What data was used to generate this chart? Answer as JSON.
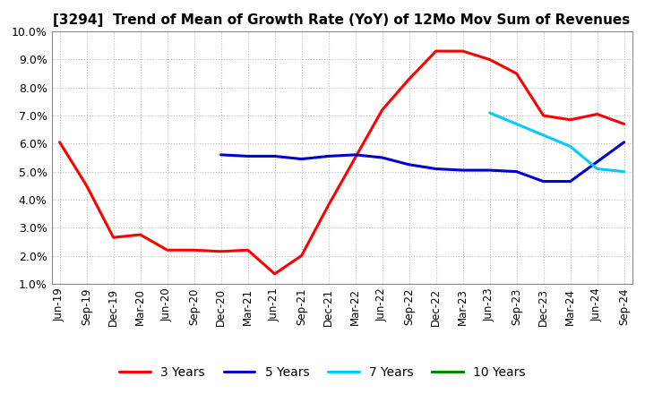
{
  "title": "[3294]  Trend of Mean of Growth Rate (YoY) of 12Mo Mov Sum of Revenues",
  "title_fontsize": 11,
  "ylim": [
    1.0,
    10.0
  ],
  "yticks": [
    1.0,
    2.0,
    3.0,
    4.0,
    5.0,
    6.0,
    7.0,
    8.0,
    9.0,
    10.0
  ],
  "background_color": "#ffffff",
  "plot_bg_color": "#ffffff",
  "x_labels": [
    "Jun-19",
    "Sep-19",
    "Dec-19",
    "Mar-20",
    "Jun-20",
    "Sep-20",
    "Dec-20",
    "Mar-21",
    "Jun-21",
    "Sep-21",
    "Dec-21",
    "Mar-22",
    "Jun-22",
    "Sep-22",
    "Dec-22",
    "Mar-23",
    "Jun-23",
    "Sep-23",
    "Dec-23",
    "Mar-24",
    "Jun-24",
    "Sep-24"
  ],
  "series": {
    "3 Years": {
      "color": "#ff0000",
      "data": [
        6.05,
        4.5,
        2.65,
        2.75,
        2.2,
        2.2,
        2.15,
        2.2,
        1.35,
        2.0,
        3.8,
        5.5,
        7.2,
        8.3,
        9.3,
        9.3,
        9.0,
        8.5,
        7.0,
        6.85,
        7.05,
        6.7
      ]
    },
    "5 Years": {
      "color": "#0000cc",
      "data": [
        null,
        null,
        null,
        null,
        null,
        null,
        5.6,
        5.55,
        5.55,
        5.45,
        5.55,
        5.6,
        5.5,
        5.25,
        5.1,
        5.05,
        5.05,
        5.0,
        4.65,
        4.65,
        5.35,
        6.05
      ]
    },
    "7 Years": {
      "color": "#00ccff",
      "data": [
        null,
        null,
        null,
        null,
        null,
        null,
        null,
        null,
        null,
        null,
        null,
        null,
        null,
        null,
        null,
        null,
        7.1,
        6.7,
        6.3,
        5.9,
        5.1,
        5.0
      ]
    },
    "10 Years": {
      "color": "#008800",
      "data": [
        null,
        null,
        null,
        null,
        null,
        null,
        null,
        null,
        null,
        null,
        null,
        null,
        null,
        null,
        null,
        null,
        null,
        null,
        null,
        null,
        null,
        null
      ]
    }
  },
  "legend_ncol": 4,
  "grid_color": "#bbbbbb",
  "grid_style": ":",
  "tick_fontsize": 8.5,
  "ytick_fontsize": 9
}
